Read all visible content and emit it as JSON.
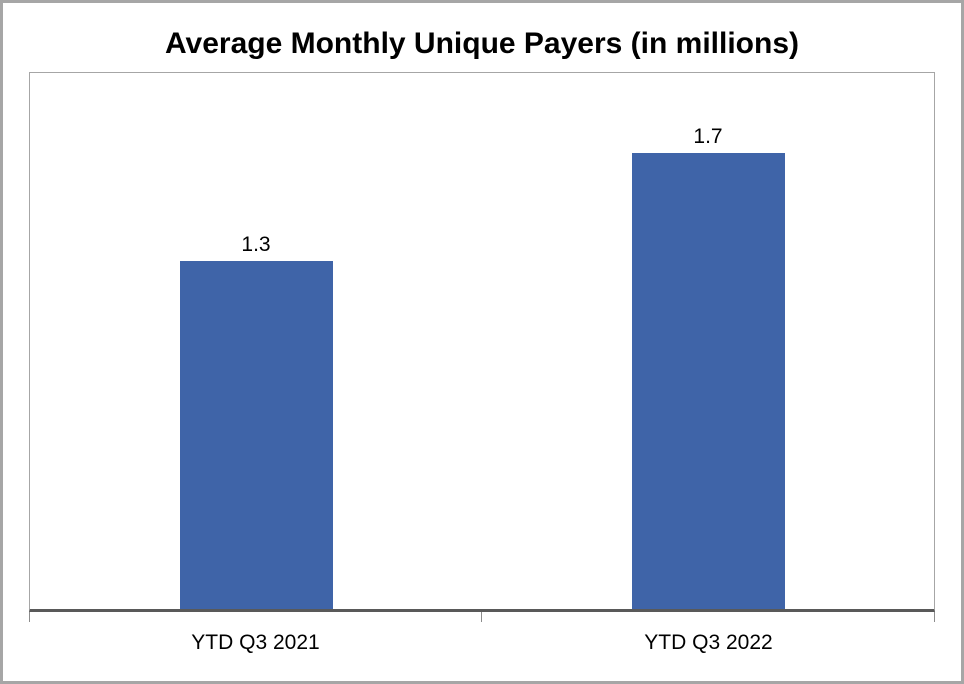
{
  "chart_data": {
    "type": "bar",
    "title": "Average Monthly Unique Payers (in millions)",
    "categories": [
      "YTD Q3 2021",
      "YTD Q3 2022"
    ],
    "values": [
      1.3,
      1.7
    ],
    "value_labels": [
      "1.3",
      "1.7"
    ],
    "xlabel": "",
    "ylabel": "",
    "ylim": [
      0,
      2
    ],
    "grid": false,
    "legend": false,
    "axis_ticks": "bottom edge: left, center, right",
    "bar_color": "#3F64A8",
    "axis_line_color": "#595959",
    "plot_border_color": "#A6A6A6",
    "outer_border_color": "#A6A6A6",
    "background_color": "#FFFFFF",
    "text_color": "#000000"
  }
}
